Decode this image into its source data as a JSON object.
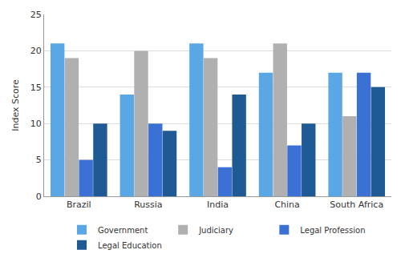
{
  "chart_data": {
    "type": "bar",
    "y_label": "Index Score",
    "categories": [
      "Brazil",
      "Russia",
      "India",
      "China",
      "South Africa"
    ],
    "series": [
      {
        "name": "Government",
        "color": "#5aa7e6",
        "values": [
          21,
          14,
          21,
          17,
          17
        ]
      },
      {
        "name": "Judiciary",
        "color": "#b0b0b0",
        "values": [
          19,
          20,
          19,
          21,
          11
        ]
      },
      {
        "name": "Legal Profession",
        "color": "#3b70d4",
        "values": [
          5,
          10,
          4,
          7,
          17
        ]
      },
      {
        "name": "Legal Education",
        "color": "#1f5a94",
        "values": [
          10,
          9,
          14,
          10,
          15
        ]
      }
    ],
    "ylim": [
      0,
      25
    ],
    "yticks": [
      0,
      5,
      10,
      15,
      20,
      25
    ],
    "grid": true,
    "legend": "bottom"
  }
}
